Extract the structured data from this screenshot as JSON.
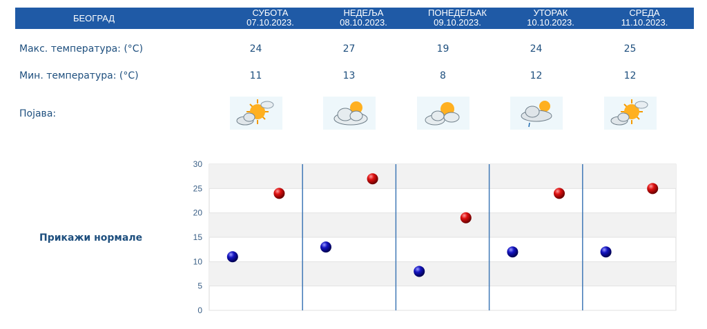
{
  "header": {
    "city": "БЕОГРАД",
    "days": [
      {
        "name": "СУБОТА",
        "date": "07.10.2023."
      },
      {
        "name": "НЕДЕЉА",
        "date": "08.10.2023."
      },
      {
        "name": "ПОНЕДЕЉАК",
        "date": "09.10.2023."
      },
      {
        "name": "УТОРАК",
        "date": "10.10.2023."
      },
      {
        "name": "СРЕДА",
        "date": "11.10.2023."
      }
    ]
  },
  "rows": {
    "max_label": "Макс. температура: (°C)",
    "min_label": "Мин. температура: (°C)",
    "phenomenon_label": "Појава:"
  },
  "max_temps": [
    "24",
    "27",
    "19",
    "24",
    "25"
  ],
  "min_temps": [
    "11",
    "13",
    "8",
    "12",
    "12"
  ],
  "icons": [
    "sun-cloud-icon",
    "cloud-sun-icon",
    "cloud-sun-icon",
    "cloud-sun-rain-icon",
    "sun-cloud-icon"
  ],
  "show_normals": "Прикажи нормале",
  "colors": {
    "header_bg": "#1f5aa6",
    "text": "#1e4f7e",
    "max_marker": "#cc0000",
    "min_marker": "#1010a0",
    "divider": "#3f78b6"
  },
  "chart_data": {
    "type": "scatter",
    "categories": [
      "07.10.2023.",
      "08.10.2023.",
      "09.10.2023.",
      "10.10.2023.",
      "11.10.2023."
    ],
    "series": [
      {
        "values": [
          11,
          13,
          8,
          12,
          12
        ]
      },
      {
        "values": [
          24,
          27,
          19,
          24,
          25
        ]
      }
    ],
    "yticks": [
      0,
      5,
      10,
      15,
      20,
      25,
      30
    ],
    "ylim": [
      0,
      30
    ],
    "grid": true,
    "legend": "none"
  }
}
